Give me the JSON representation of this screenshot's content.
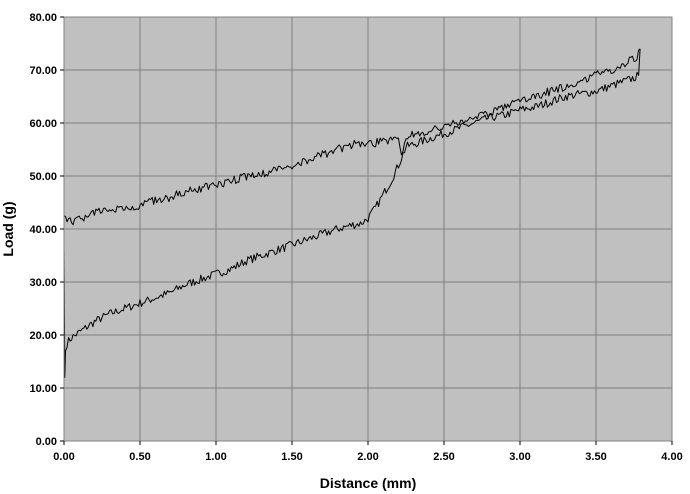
{
  "chart_data": {
    "type": "line",
    "title": "",
    "xlabel": "Distance (mm)",
    "ylabel": "Load (g)",
    "xlim": [
      0,
      4
    ],
    "ylim": [
      0,
      80
    ],
    "grid": true,
    "legend": "none",
    "plot_background": "#c0c0c0",
    "line_color": "#000000",
    "x_ticks": [
      "0.00",
      "0.50",
      "1.00",
      "1.50",
      "2.00",
      "2.50",
      "3.00",
      "3.50",
      "4.00"
    ],
    "y_ticks": [
      "0.00",
      "10.00",
      "20.00",
      "30.00",
      "40.00",
      "50.00",
      "60.00",
      "70.00",
      "80.00"
    ],
    "series": [
      {
        "x": [
          0.0,
          0.005,
          0.01,
          0.02,
          0.05,
          0.1,
          0.2,
          0.3,
          0.4,
          0.5,
          0.6,
          0.7,
          0.8,
          0.9,
          1.0,
          1.1,
          1.2,
          1.3,
          1.4,
          1.5,
          1.6,
          1.7,
          1.8,
          1.9,
          1.95,
          2.0,
          2.05,
          2.1,
          2.15,
          2.2,
          2.25,
          2.3,
          2.4,
          2.5,
          2.6,
          2.7,
          2.8,
          2.9,
          3.0,
          3.1,
          3.2,
          3.3,
          3.4,
          3.5,
          3.6,
          3.7,
          3.75,
          3.78,
          3.79
        ],
        "y": [
          37.0,
          12.0,
          17.0,
          18.5,
          19.5,
          20.5,
          22.5,
          24.0,
          25.0,
          26.0,
          27.0,
          28.0,
          29.5,
          30.5,
          31.5,
          32.5,
          34.0,
          35.0,
          36.0,
          37.0,
          38.0,
          39.0,
          40.0,
          40.8,
          41.0,
          42.0,
          44.0,
          46.5,
          49.0,
          52.0,
          55.5,
          56.0,
          57.0,
          58.0,
          59.0,
          60.0,
          61.0,
          61.5,
          62.5,
          63.0,
          64.0,
          65.0,
          65.5,
          66.0,
          67.0,
          68.0,
          68.5,
          69.0,
          74.0
        ]
      },
      {
        "x": [
          3.79,
          3.78,
          3.75,
          3.7,
          3.6,
          3.5,
          3.4,
          3.3,
          3.2,
          3.1,
          3.0,
          2.9,
          2.8,
          2.7,
          2.6,
          2.5,
          2.4,
          2.3,
          2.25,
          2.22,
          2.2,
          2.1,
          2.0,
          1.9,
          1.8,
          1.7,
          1.6,
          1.5,
          1.4,
          1.3,
          1.2,
          1.1,
          1.0,
          0.9,
          0.8,
          0.7,
          0.6,
          0.5,
          0.4,
          0.3,
          0.2,
          0.15,
          0.1,
          0.05,
          0.0
        ],
        "y": [
          74.0,
          73.0,
          72.0,
          71.5,
          70.0,
          69.0,
          68.0,
          67.0,
          66.0,
          65.0,
          64.0,
          63.0,
          62.0,
          61.0,
          60.0,
          59.5,
          58.5,
          58.0,
          57.5,
          54.0,
          57.0,
          56.5,
          56.0,
          56.0,
          55.0,
          54.0,
          53.0,
          52.0,
          51.0,
          50.5,
          50.0,
          49.0,
          48.5,
          47.5,
          47.0,
          46.0,
          45.5,
          44.5,
          44.0,
          43.5,
          43.0,
          42.0,
          42.0,
          41.5,
          42.5
        ]
      }
    ]
  }
}
